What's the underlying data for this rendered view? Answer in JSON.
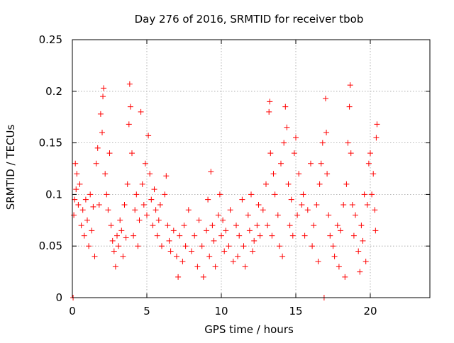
{
  "chart_data": {
    "type": "scatter",
    "title": "Day 276 of 2016, SRMTID for receiver tbob",
    "xlabel": "GPS time / hours",
    "ylabel": "SRMTID / TECUs",
    "xlim": [
      0,
      24
    ],
    "ylim": [
      0,
      0.25
    ],
    "x_ticks": [
      0,
      5,
      10,
      15,
      20
    ],
    "x_tick_labels": [
      "0",
      "5",
      "10",
      "15",
      "20"
    ],
    "y_ticks": [
      0,
      0.05,
      0.1,
      0.15,
      0.2,
      0.25
    ],
    "y_tick_labels": [
      "0",
      "0.05",
      "0.1",
      "0.15",
      "0.2",
      "0.25"
    ],
    "grid": true,
    "marker": "+",
    "series": [
      {
        "name": "SRMTID",
        "color": "#ff0000",
        "points": [
          [
            0.05,
            0.0
          ],
          [
            0.1,
            0.08
          ],
          [
            0.15,
            0.095
          ],
          [
            0.2,
            0.13
          ],
          [
            0.25,
            0.105
          ],
          [
            0.3,
            0.12
          ],
          [
            0.4,
            0.09
          ],
          [
            0.5,
            0.11
          ],
          [
            0.6,
            0.07
          ],
          [
            0.7,
            0.085
          ],
          [
            0.8,
            0.06
          ],
          [
            0.9,
            0.095
          ],
          [
            1.0,
            0.075
          ],
          [
            1.1,
            0.05
          ],
          [
            1.2,
            0.1
          ],
          [
            1.3,
            0.065
          ],
          [
            1.4,
            0.088
          ],
          [
            1.5,
            0.04
          ],
          [
            1.6,
            0.13
          ],
          [
            1.7,
            0.145
          ],
          [
            1.8,
            0.09
          ],
          [
            1.9,
            0.178
          ],
          [
            2.0,
            0.16
          ],
          [
            2.05,
            0.195
          ],
          [
            2.1,
            0.203
          ],
          [
            2.2,
            0.12
          ],
          [
            2.3,
            0.1
          ],
          [
            2.4,
            0.085
          ],
          [
            2.5,
            0.14
          ],
          [
            2.6,
            0.07
          ],
          [
            2.7,
            0.055
          ],
          [
            2.8,
            0.045
          ],
          [
            2.9,
            0.03
          ],
          [
            3.0,
            0.06
          ],
          [
            3.1,
            0.05
          ],
          [
            3.2,
            0.075
          ],
          [
            3.3,
            0.065
          ],
          [
            3.4,
            0.04
          ],
          [
            3.5,
            0.09
          ],
          [
            3.6,
            0.058
          ],
          [
            3.7,
            0.11
          ],
          [
            3.8,
            0.168
          ],
          [
            3.85,
            0.207
          ],
          [
            3.9,
            0.185
          ],
          [
            4.0,
            0.14
          ],
          [
            4.1,
            0.06
          ],
          [
            4.2,
            0.085
          ],
          [
            4.3,
            0.1
          ],
          [
            4.4,
            0.05
          ],
          [
            4.5,
            0.075
          ],
          [
            4.6,
            0.18
          ],
          [
            4.7,
            0.11
          ],
          [
            4.8,
            0.09
          ],
          [
            4.9,
            0.13
          ],
          [
            5.0,
            0.08
          ],
          [
            5.1,
            0.157
          ],
          [
            5.2,
            0.12
          ],
          [
            5.3,
            0.095
          ],
          [
            5.4,
            0.07
          ],
          [
            5.5,
            0.105
          ],
          [
            5.6,
            0.085
          ],
          [
            5.7,
            0.06
          ],
          [
            5.8,
            0.075
          ],
          [
            5.9,
            0.09
          ],
          [
            6.0,
            0.05
          ],
          [
            6.2,
            0.1
          ],
          [
            6.3,
            0.118
          ],
          [
            6.4,
            0.07
          ],
          [
            6.5,
            0.055
          ],
          [
            6.6,
            0.045
          ],
          [
            6.8,
            0.065
          ],
          [
            7.0,
            0.04
          ],
          [
            7.1,
            0.02
          ],
          [
            7.2,
            0.06
          ],
          [
            7.4,
            0.035
          ],
          [
            7.5,
            0.07
          ],
          [
            7.6,
            0.05
          ],
          [
            7.8,
            0.085
          ],
          [
            8.0,
            0.045
          ],
          [
            8.2,
            0.06
          ],
          [
            8.4,
            0.03
          ],
          [
            8.5,
            0.075
          ],
          [
            8.7,
            0.05
          ],
          [
            8.8,
            0.02
          ],
          [
            9.0,
            0.065
          ],
          [
            9.1,
            0.095
          ],
          [
            9.2,
            0.04
          ],
          [
            9.3,
            0.122
          ],
          [
            9.4,
            0.07
          ],
          [
            9.5,
            0.055
          ],
          [
            9.6,
            0.03
          ],
          [
            9.8,
            0.08
          ],
          [
            9.9,
            0.1
          ],
          [
            10.0,
            0.06
          ],
          [
            10.1,
            0.075
          ],
          [
            10.2,
            0.045
          ],
          [
            10.3,
            0.065
          ],
          [
            10.5,
            0.05
          ],
          [
            10.6,
            0.085
          ],
          [
            10.8,
            0.035
          ],
          [
            11.0,
            0.07
          ],
          [
            11.1,
            0.04
          ],
          [
            11.2,
            0.06
          ],
          [
            11.4,
            0.095
          ],
          [
            11.5,
            0.05
          ],
          [
            11.6,
            0.03
          ],
          [
            11.8,
            0.08
          ],
          [
            11.9,
            0.065
          ],
          [
            12.0,
            0.1
          ],
          [
            12.1,
            0.045
          ],
          [
            12.2,
            0.055
          ],
          [
            12.4,
            0.07
          ],
          [
            12.5,
            0.09
          ],
          [
            12.6,
            0.06
          ],
          [
            12.8,
            0.085
          ],
          [
            13.0,
            0.11
          ],
          [
            13.1,
            0.07
          ],
          [
            13.2,
            0.18
          ],
          [
            13.25,
            0.19
          ],
          [
            13.3,
            0.14
          ],
          [
            13.4,
            0.06
          ],
          [
            13.5,
            0.12
          ],
          [
            13.6,
            0.1
          ],
          [
            13.8,
            0.08
          ],
          [
            13.9,
            0.05
          ],
          [
            14.0,
            0.13
          ],
          [
            14.1,
            0.04
          ],
          [
            14.2,
            0.15
          ],
          [
            14.3,
            0.185
          ],
          [
            14.4,
            0.165
          ],
          [
            14.5,
            0.11
          ],
          [
            14.6,
            0.07
          ],
          [
            14.7,
            0.095
          ],
          [
            14.8,
            0.06
          ],
          [
            14.9,
            0.14
          ],
          [
            15.0,
            0.155
          ],
          [
            15.1,
            0.08
          ],
          [
            15.2,
            0.12
          ],
          [
            15.4,
            0.09
          ],
          [
            15.5,
            0.1
          ],
          [
            15.6,
            0.06
          ],
          [
            15.8,
            0.085
          ],
          [
            16.0,
            0.13
          ],
          [
            16.1,
            0.05
          ],
          [
            16.2,
            0.07
          ],
          [
            16.4,
            0.09
          ],
          [
            16.5,
            0.035
          ],
          [
            16.6,
            0.11
          ],
          [
            16.7,
            0.13
          ],
          [
            16.8,
            0.15
          ],
          [
            16.9,
            0.0
          ],
          [
            17.0,
            0.193
          ],
          [
            17.05,
            0.16
          ],
          [
            17.1,
            0.12
          ],
          [
            17.2,
            0.08
          ],
          [
            17.3,
            0.06
          ],
          [
            17.5,
            0.05
          ],
          [
            17.6,
            0.04
          ],
          [
            17.8,
            0.07
          ],
          [
            17.9,
            0.03
          ],
          [
            18.0,
            0.065
          ],
          [
            18.2,
            0.09
          ],
          [
            18.3,
            0.02
          ],
          [
            18.4,
            0.11
          ],
          [
            18.5,
            0.15
          ],
          [
            18.6,
            0.185
          ],
          [
            18.65,
            0.206
          ],
          [
            18.7,
            0.14
          ],
          [
            18.8,
            0.09
          ],
          [
            18.9,
            0.06
          ],
          [
            19.0,
            0.08
          ],
          [
            19.2,
            0.045
          ],
          [
            19.3,
            0.025
          ],
          [
            19.4,
            0.07
          ],
          [
            19.5,
            0.055
          ],
          [
            19.6,
            0.1
          ],
          [
            19.7,
            0.035
          ],
          [
            19.8,
            0.09
          ],
          [
            19.9,
            0.13
          ],
          [
            20.0,
            0.14
          ],
          [
            20.1,
            0.1
          ],
          [
            20.2,
            0.12
          ],
          [
            20.3,
            0.085
          ],
          [
            20.35,
            0.065
          ],
          [
            20.4,
            0.155
          ],
          [
            20.45,
            0.168
          ]
        ]
      }
    ]
  }
}
